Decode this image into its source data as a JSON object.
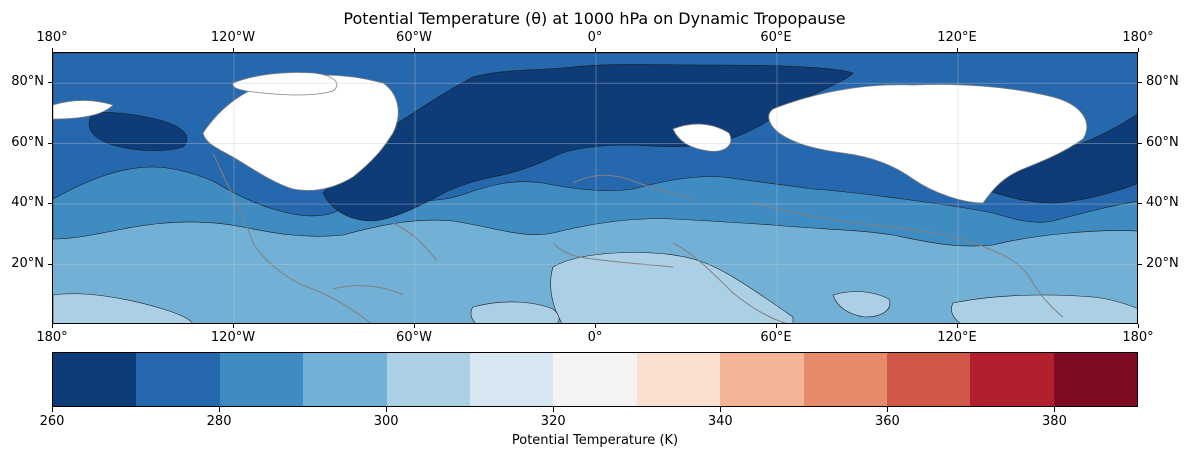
{
  "chart_data": {
    "type": "map-contour",
    "title": "Potential Temperature (θ) at 1000 hPa on Dynamic Tropopause",
    "lon_ticks": [
      "180°",
      "120°W",
      "60°W",
      "0°",
      "60°E",
      "120°E",
      "180°"
    ],
    "lat_ticks": [
      "80°N",
      "60°N",
      "40°N",
      "20°N"
    ],
    "colorbar": {
      "label": "Potential Temperature (K)",
      "tick_labels": [
        "260",
        "280",
        "300",
        "320",
        "340",
        "360",
        "380"
      ],
      "min": 260,
      "max": 390,
      "step": 10,
      "colors": [
        "#0d3c78",
        "#2668ad",
        "#3f8cc2",
        "#73b0d6",
        "#abd0e6",
        "#d8e8f2",
        "#f5f4f3",
        "#fbdfd0",
        "#f4b597",
        "#e68a6c",
        "#d05849",
        "#b2202e",
        "#7f0c22"
      ]
    },
    "grid": true
  }
}
